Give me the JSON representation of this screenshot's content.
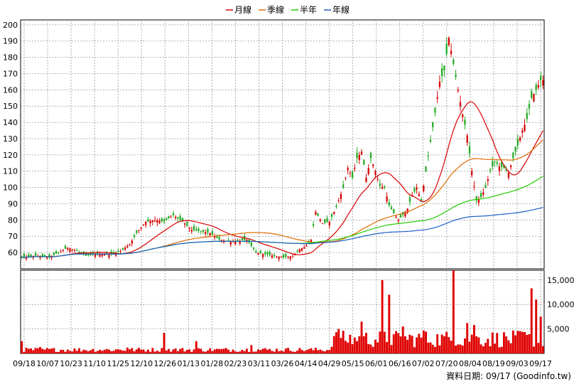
{
  "chart_data": [
    {
      "type": "candlestick",
      "legend": [
        {
          "name": "月線",
          "color": "#d80000"
        },
        {
          "name": "季線",
          "color": "#e06a00"
        },
        {
          "name": "半年",
          "color": "#22cc00"
        },
        {
          "name": "年線",
          "color": "#1e5fc8"
        }
      ],
      "up_color": "#d80000",
      "down_color": "#22aa22",
      "ylim": [
        50,
        203
      ],
      "y_ticks": [
        60,
        70,
        80,
        90,
        100,
        110,
        120,
        130,
        140,
        150,
        160,
        170,
        180,
        190,
        200
      ],
      "grid": true,
      "x_tick_labels": [
        "09/18",
        "10/07",
        "10/23",
        "11/10",
        "11/25",
        "12/10",
        "12/26",
        "01/13",
        "01/28",
        "02/23",
        "03/11",
        "03/26",
        "04/14",
        "04/29",
        "05/15",
        "06/01",
        "06/16",
        "07/02",
        "07/20",
        "08/04",
        "08/19",
        "09/03",
        "09/17"
      ],
      "close_keypoints": [
        [
          0,
          57
        ],
        [
          6,
          58
        ],
        [
          12,
          57
        ],
        [
          16,
          60
        ],
        [
          20,
          63
        ],
        [
          24,
          61
        ],
        [
          28,
          58
        ],
        [
          33,
          59
        ],
        [
          38,
          59
        ],
        [
          43,
          61
        ],
        [
          47,
          65
        ],
        [
          50,
          72
        ],
        [
          54,
          79
        ],
        [
          58,
          80
        ],
        [
          62,
          79
        ],
        [
          66,
          83
        ],
        [
          70,
          79
        ],
        [
          74,
          74
        ],
        [
          78,
          73
        ],
        [
          82,
          72
        ],
        [
          86,
          68
        ],
        [
          90,
          67
        ],
        [
          94,
          67
        ],
        [
          98,
          68
        ],
        [
          102,
          60
        ],
        [
          106,
          59
        ],
        [
          110,
          58
        ],
        [
          114,
          57
        ],
        [
          118,
          58
        ],
        [
          121,
          62
        ],
        [
          124,
          64
        ],
        [
          126,
          68
        ],
        [
          128,
          85
        ],
        [
          131,
          78
        ],
        [
          134,
          79
        ],
        [
          137,
          88
        ],
        [
          140,
          100
        ],
        [
          142,
          112
        ],
        [
          144,
          106
        ],
        [
          146,
          118
        ],
        [
          148,
          122
        ],
        [
          150,
          106
        ],
        [
          152,
          118
        ],
        [
          154,
          110
        ],
        [
          156,
          101
        ],
        [
          158,
          100
        ],
        [
          160,
          89
        ],
        [
          162,
          84
        ],
        [
          164,
          80
        ],
        [
          166,
          83
        ],
        [
          168,
          87
        ],
        [
          170,
          95
        ],
        [
          172,
          100
        ],
        [
          174,
          92
        ],
        [
          176,
          110
        ],
        [
          178,
          128
        ],
        [
          180,
          146
        ],
        [
          182,
          165
        ],
        [
          184,
          172
        ],
        [
          186,
          192
        ],
        [
          188,
          176
        ],
        [
          190,
          160
        ],
        [
          192,
          145
        ],
        [
          194,
          132
        ],
        [
          196,
          110
        ],
        [
          198,
          92
        ],
        [
          200,
          94
        ],
        [
          202,
          100
        ],
        [
          204,
          110
        ],
        [
          206,
          116
        ],
        [
          208,
          113
        ],
        [
          210,
          112
        ],
        [
          212,
          109
        ],
        [
          214,
          118
        ],
        [
          216,
          126
        ],
        [
          218,
          135
        ],
        [
          220,
          142
        ],
        [
          222,
          155
        ],
        [
          224,
          160
        ],
        [
          226,
          166
        ]
      ],
      "volume": {
        "ylim": [
          0,
          17000
        ],
        "y_ticks": [
          5000,
          10000,
          15000
        ],
        "y_tick_labels": [
          "5,000",
          "10,000",
          "15,000"
        ],
        "color": "#e00000",
        "spikes": [
          [
            0,
            2500
          ],
          [
            8,
            1300
          ],
          [
            46,
            1200
          ],
          [
            62,
            4200
          ],
          [
            76,
            2500
          ],
          [
            100,
            1700
          ],
          [
            138,
            5000
          ],
          [
            148,
            6500
          ],
          [
            157,
            15000
          ],
          [
            160,
            12000
          ],
          [
            166,
            5500
          ],
          [
            175,
            4700
          ],
          [
            188,
            17000
          ],
          [
            194,
            6200
          ],
          [
            197,
            5800
          ],
          [
            215,
            3700
          ],
          [
            218,
            4400
          ],
          [
            222,
            13300
          ],
          [
            224,
            11000
          ],
          [
            226,
            7500
          ]
        ]
      }
    }
  ],
  "footer": "資料日期: 09/17 (Goodinfo.tw)"
}
